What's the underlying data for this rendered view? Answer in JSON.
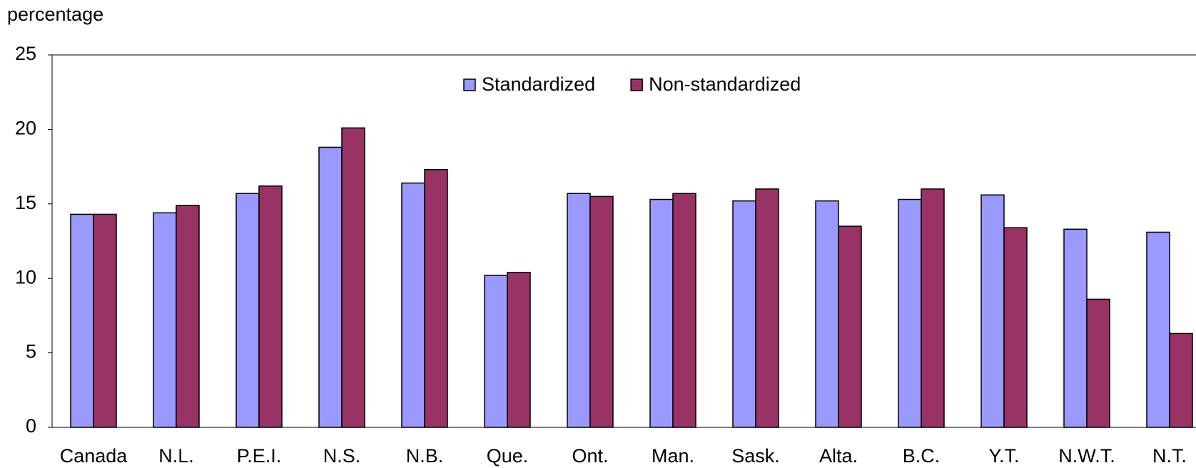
{
  "chart_data": {
    "type": "bar",
    "y_label": "percentage",
    "categories": [
      "Canada",
      "N.L.",
      "P.E.I.",
      "N.S.",
      "N.B.",
      "Que.",
      "Ont.",
      "Man.",
      "Sask.",
      "Alta.",
      "B.C.",
      "Y.T.",
      "N.W.T.",
      "N.T."
    ],
    "series": [
      {
        "name": "Standardized",
        "color": "#9999ff",
        "values": [
          14.3,
          14.4,
          15.7,
          18.8,
          16.4,
          10.2,
          15.7,
          15.3,
          15.2,
          15.2,
          15.3,
          15.6,
          13.3,
          13.1
        ]
      },
      {
        "name": "Non-standardized",
        "color": "#993366",
        "values": [
          14.3,
          14.9,
          16.2,
          20.1,
          17.3,
          10.4,
          15.5,
          15.7,
          16.0,
          13.5,
          16.0,
          13.4,
          8.6,
          6.3
        ]
      }
    ],
    "ylim": [
      0,
      25
    ],
    "yticks": [
      0,
      5,
      10,
      15,
      20,
      25
    ],
    "grid": false,
    "legend": "top"
  }
}
